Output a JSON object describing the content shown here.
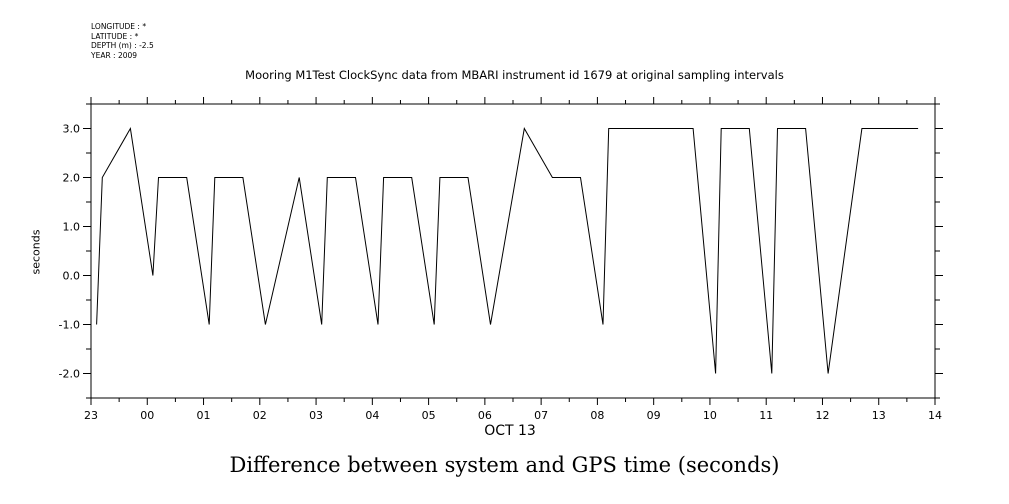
{
  "header": {
    "longitude": "LONGITUDE : *",
    "latitude": "LATITUDE : *",
    "depth": "DEPTH (m) : -2.5",
    "year": "YEAR : 2009"
  },
  "chart_data": {
    "type": "line",
    "title": "Mooring M1Test ClockSync data from MBARI instrument id 1679 at original sampling intervals",
    "caption": "Difference between system and GPS time (seconds)",
    "xlabel": "OCT 13",
    "ylabel": "seconds",
    "xlim": [
      -1,
      14
    ],
    "ylim": [
      -2.5,
      3.5
    ],
    "x_tick_labels": [
      "23",
      "00",
      "01",
      "02",
      "03",
      "04",
      "05",
      "06",
      "07",
      "08",
      "09",
      "10",
      "11",
      "12",
      "13",
      "14"
    ],
    "y_ticks": [
      3.0,
      2.0,
      1.0,
      0.0,
      -1.0,
      -2.0
    ],
    "y_tick_labels": [
      "3.0",
      "2.0",
      "1.0",
      "0.0",
      "-1.0",
      "-2.0"
    ],
    "grid": false,
    "series": [
      {
        "x": [
          -0.9,
          -0.8,
          -0.3,
          0.1,
          0.2,
          0.7,
          1.1,
          1.2,
          1.7,
          2.1,
          2.7,
          3.1,
          3.2,
          3.7,
          4.1,
          4.2,
          4.7,
          5.1,
          5.2,
          5.7,
          6.1,
          6.7,
          7.2,
          7.7,
          8.1,
          8.2,
          9.7,
          10.1,
          10.2,
          10.7,
          11.1,
          11.2,
          11.7,
          12.1,
          12.7,
          13.7
        ],
        "y": [
          -1,
          2,
          3,
          0,
          2,
          2,
          -1,
          2,
          2,
          -1,
          2,
          -1,
          2,
          2,
          -1,
          2,
          2,
          -1,
          2,
          2,
          -1,
          3,
          2,
          2,
          -1,
          3,
          3,
          -2,
          3,
          3,
          -2,
          3,
          3,
          -2,
          3,
          3
        ]
      }
    ]
  }
}
